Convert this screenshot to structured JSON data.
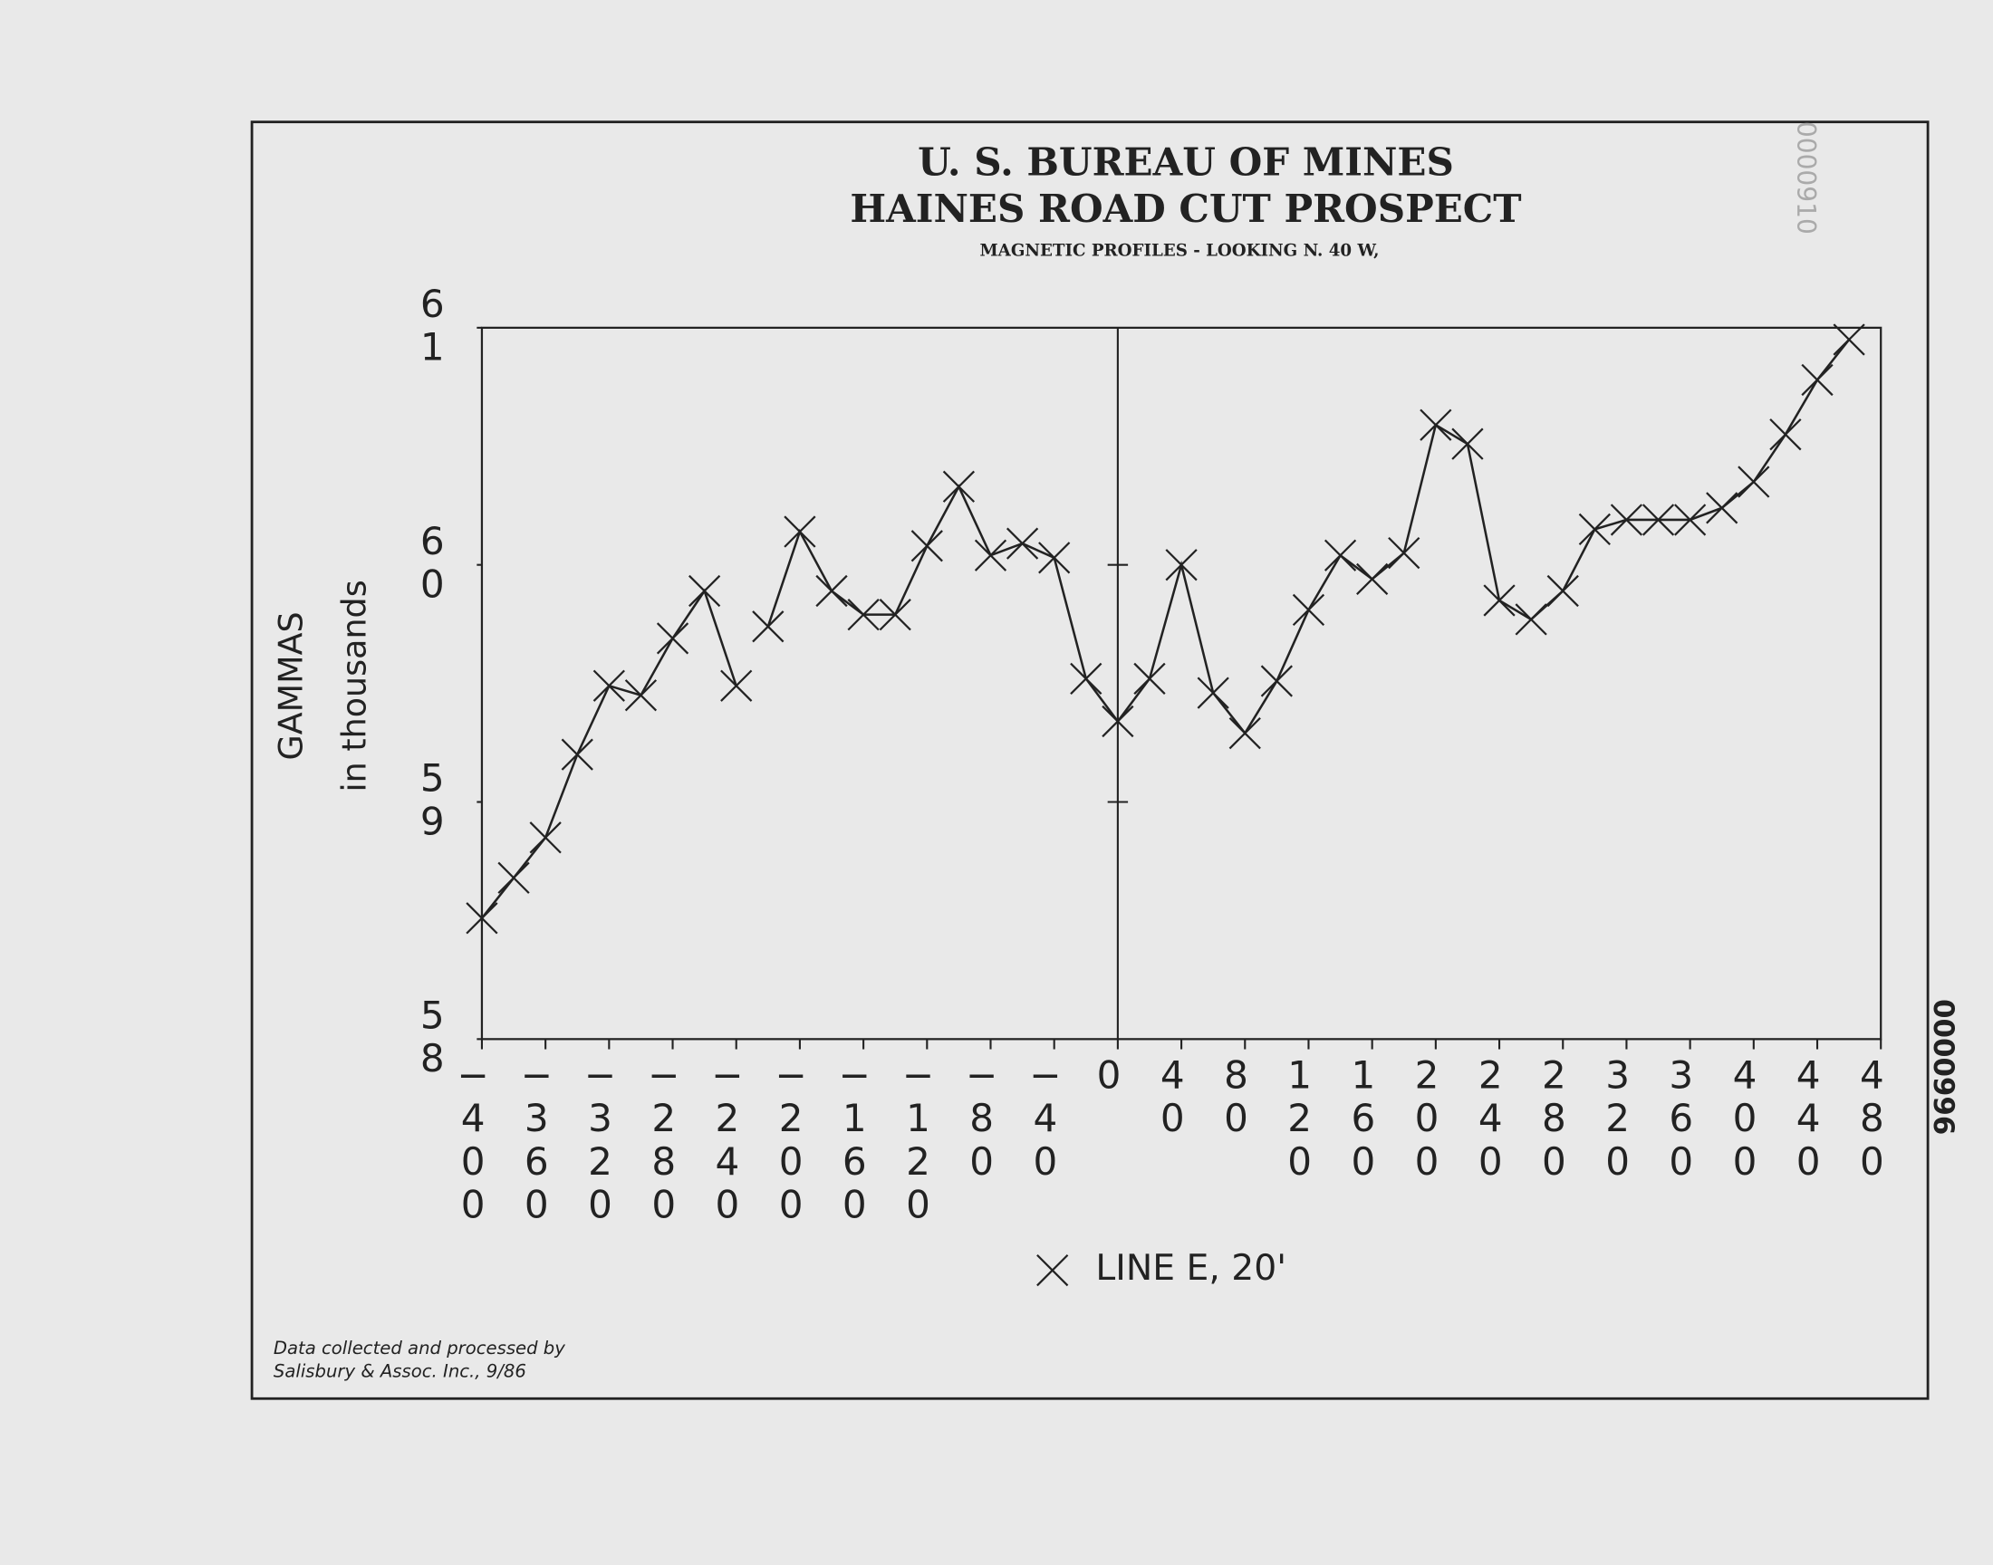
{
  "chart_data": {
    "type": "line",
    "title": "U. S. BUREAU OF MINES",
    "subtitle": "HAINES ROAD CUT PROSPECT",
    "caption": "MAGNETIC PROFILES - LOOKING N. 40 W,",
    "y_label": "GAMMAS",
    "y_label_unit": "in thousands",
    "note": [
      "Data collected and processed by",
      "Salisbury & Assoc. Inc., 9/86"
    ],
    "stamps": [
      "0000910",
      "0000996"
    ],
    "x": [
      -400,
      -380,
      -360,
      -340,
      -320,
      -300,
      -280,
      -260,
      -240,
      -230,
      -220,
      -200,
      -180,
      -160,
      -140,
      -120,
      -100,
      -80,
      -60,
      -40,
      -20,
      0,
      20,
      40,
      60,
      80,
      100,
      120,
      140,
      160,
      180,
      200,
      220,
      240,
      260,
      280,
      300,
      320,
      340,
      360,
      380,
      400,
      420,
      440,
      460
    ],
    "series": [
      {
        "name": "LINE E, 20'",
        "color": "#222222",
        "values": [
          58.51,
          58.68,
          58.85,
          59.2,
          59.49,
          59.45,
          59.69,
          59.89,
          59.49,
          null,
          59.74,
          60.14,
          59.89,
          59.79,
          59.79,
          60.08,
          60.33,
          60.04,
          60.09,
          60.03,
          59.52,
          59.34,
          59.52,
          60.0,
          59.46,
          59.29,
          59.51,
          59.81,
          60.04,
          59.94,
          60.05,
          60.59,
          60.51,
          59.85,
          59.77,
          59.89,
          60.15,
          60.19,
          60.19,
          60.19,
          60.24,
          60.35,
          60.55,
          60.78,
          60.95
        ]
      }
    ],
    "xlim": [
      -400,
      480
    ],
    "xticks": [
      -400,
      -360,
      -320,
      -280,
      -240,
      -200,
      -160,
      -120,
      -80,
      -40,
      0,
      40,
      80,
      120,
      160,
      200,
      240,
      280,
      320,
      360,
      400,
      440,
      480
    ],
    "ylim": [
      58,
      61
    ],
    "yticks": [
      58,
      59,
      60,
      61
    ],
    "zero_line": true
  }
}
